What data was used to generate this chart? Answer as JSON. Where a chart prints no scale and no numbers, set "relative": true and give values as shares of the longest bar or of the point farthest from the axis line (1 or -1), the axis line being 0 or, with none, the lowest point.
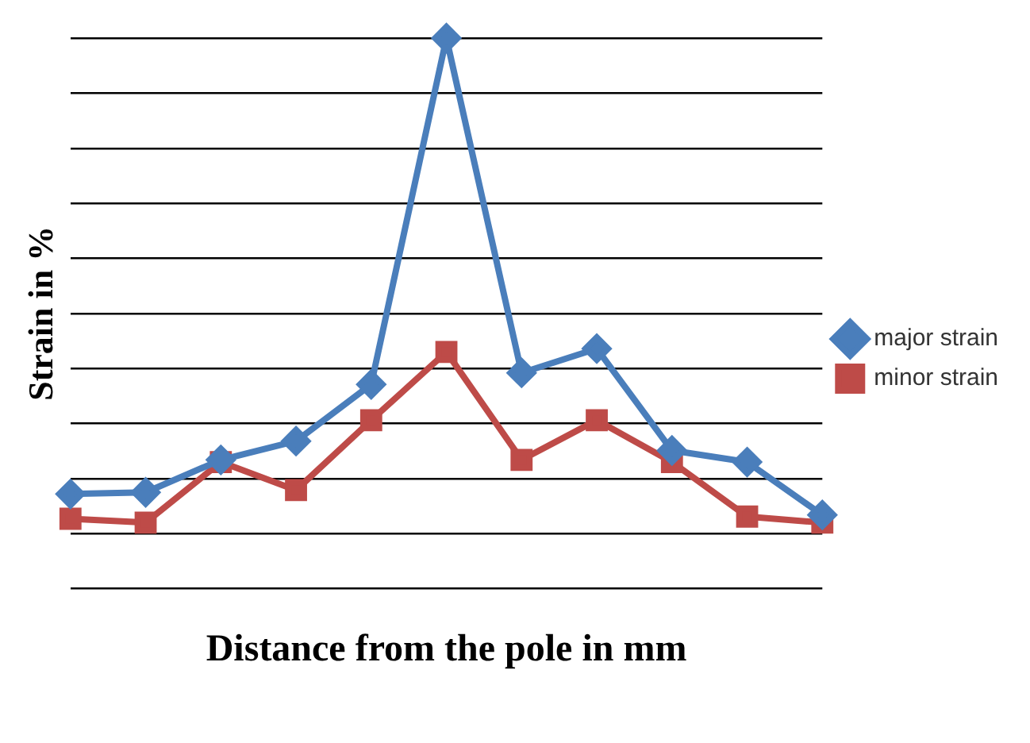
{
  "chart_data": {
    "type": "line",
    "relative": true,
    "xlabel": "Distance from the pole in mm",
    "ylabel": "Strain in %",
    "categories": [
      null,
      null,
      null,
      null,
      null,
      null,
      null,
      null,
      null,
      null,
      null
    ],
    "grid": "y",
    "legend": "right",
    "series": [
      {
        "name": "major strain",
        "color": "#4a7ebb",
        "marker": "diamond",
        "values": [
          0.172,
          0.175,
          0.234,
          0.268,
          0.371,
          1,
          0.392,
          0.436,
          0.251,
          0.23,
          0.134
        ]
      },
      {
        "name": "minor strain",
        "color": "#be4b48",
        "marker": "square",
        "values": [
          0.127,
          0.12,
          0.23,
          0.179,
          0.306,
          0.43,
          0.234,
          0.306,
          0.23,
          0.131,
          0.12
        ]
      }
    ]
  }
}
